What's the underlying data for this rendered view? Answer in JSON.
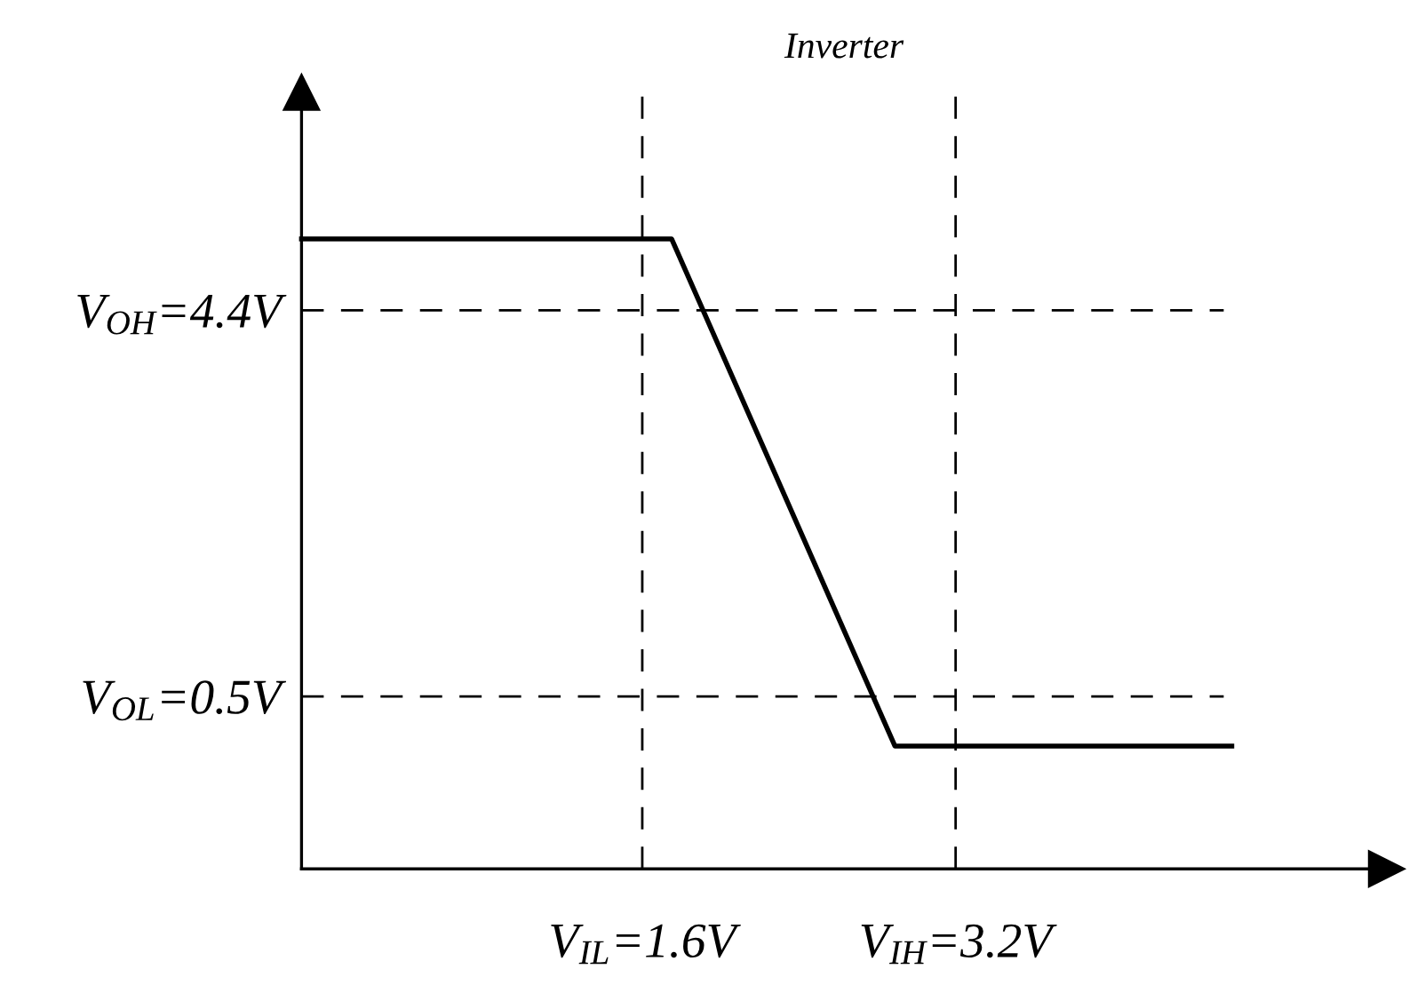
{
  "chart_data": {
    "type": "line",
    "title": "Inverter",
    "x": [
      -0.14,
      1.75,
      2.89,
      4.61
    ],
    "series": [
      {
        "color": "#000000",
        "values": [
          5.12,
          5.12,
          0.0,
          0.0
        ]
      }
    ],
    "xlim": [
      -0.14,
      5.4
    ],
    "ylim": [
      -1.24,
      6.6
    ],
    "xticks": [
      {
        "value": 1.6,
        "label": "V$_{IL}$=1.6V"
      },
      {
        "value": 3.2,
        "label": "V$_{IH}$=3.2V"
      }
    ],
    "yticks": [
      {
        "value": 0.5,
        "label": "V$_{OL}$=0.5V"
      },
      {
        "value": 4.4,
        "label": "V$_{OH}$=4.4V"
      }
    ],
    "marker": "none",
    "line_style": "solid",
    "ref_lines": [
      {
        "axis": "x",
        "value": 1.6,
        "color": "#000000",
        "line_style": "dashed"
      },
      {
        "axis": "x",
        "value": 3.2,
        "color": "#000000",
        "line_style": "dashed"
      },
      {
        "axis": "y",
        "value": 4.4,
        "color": "#000000",
        "line_style": "dashed"
      },
      {
        "axis": "y",
        "value": 0.5,
        "color": "#000000",
        "line_style": "dashed"
      }
    ]
  }
}
